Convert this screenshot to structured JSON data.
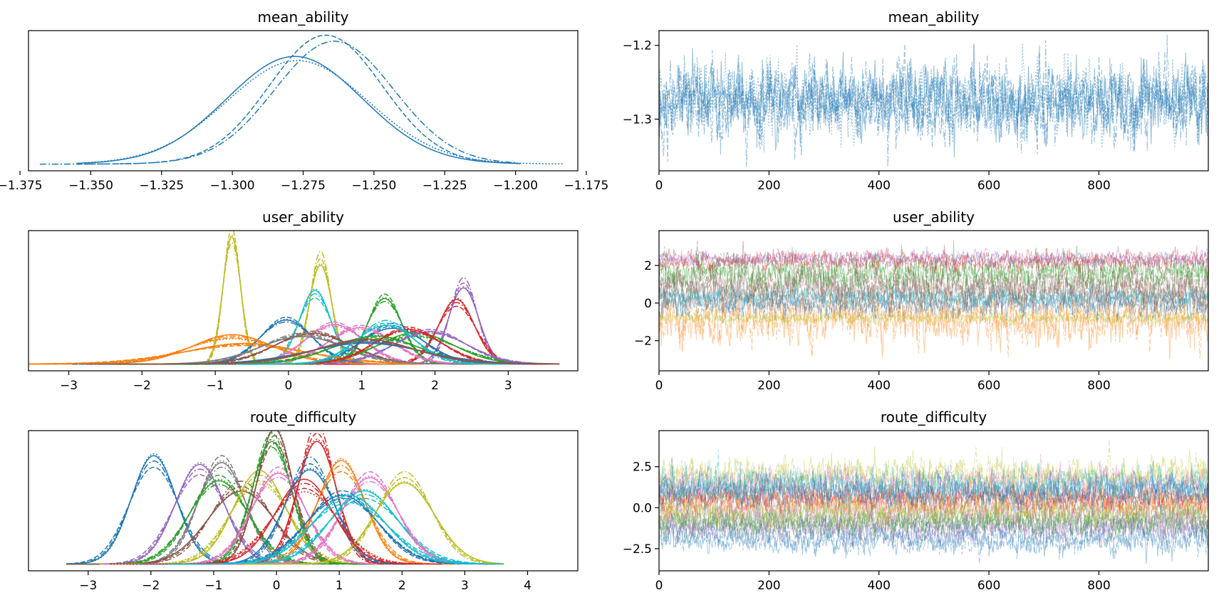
{
  "chart_data": [
    {
      "type": "line",
      "kind": "density",
      "title": "mean_ability",
      "xlabel": "",
      "ylabel": "",
      "xlim": [
        -1.372,
        -1.178
      ],
      "xticks": [
        -1.375,
        -1.35,
        -1.325,
        -1.3,
        -1.275,
        -1.25,
        -1.225,
        -1.2,
        -1.175
      ],
      "xtick_labels": [
        "−1.375",
        "−1.350",
        "−1.325",
        "−1.300",
        "−1.275",
        "−1.250",
        "−1.225",
        "−1.200",
        "−1.175"
      ],
      "y_ticks_visible": false,
      "grid": false,
      "color": "#1f77b4",
      "series": [
        {
          "linestyle": "solid",
          "curve_mean": -1.278,
          "curve_sd": 0.024,
          "range": [
            -1.355,
            -1.198
          ],
          "peak_value": -1.282
        },
        {
          "linestyle": "dashed",
          "curve_mean": -1.267,
          "curve_sd": 0.02,
          "range": [
            -1.355,
            -1.198
          ],
          "peak_value": -1.267
        },
        {
          "linestyle": "dashdot",
          "curve_mean": -1.264,
          "curve_sd": 0.021,
          "range": [
            -1.368,
            -1.2
          ],
          "peak_value": -1.263
        },
        {
          "linestyle": "dotted",
          "curve_mean": -1.277,
          "curve_sd": 0.025,
          "range": [
            -1.352,
            -1.183
          ],
          "peak_value": -1.275
        }
      ]
    },
    {
      "type": "line",
      "kind": "trace",
      "title": "mean_ability",
      "xlabel": "",
      "ylabel": "",
      "xlim": [
        0,
        999
      ],
      "ylim": [
        -1.37,
        -1.18
      ],
      "xticks": [
        0,
        200,
        400,
        600,
        800
      ],
      "xtick_labels": [
        "0",
        "200",
        "400",
        "600",
        "800"
      ],
      "yticks": [
        -1.3,
        -1.2
      ],
      "ytick_labels": [
        "−1.3",
        "−1.2"
      ],
      "grid": false,
      "color": "#1f77b4",
      "draws": 1000,
      "chains": 4,
      "series": [
        {
          "center": -1.275,
          "spread": 0.025,
          "clip": [
            -1.365,
            -1.185
          ]
        }
      ]
    },
    {
      "type": "line",
      "kind": "density",
      "title": "user_ability",
      "xlabel": "",
      "ylabel": "",
      "xlim": [
        -3.55,
        3.95
      ],
      "xticks": [
        -3,
        -2,
        -1,
        0,
        1,
        2,
        3
      ],
      "xtick_labels": [
        "−3",
        "−2",
        "−1",
        "0",
        "1",
        "2",
        "3"
      ],
      "y_ticks_visible": false,
      "grid": false,
      "series": [
        {
          "color": "#bcbd22",
          "curve_mean": -0.78,
          "curve_sd": 0.12
        },
        {
          "color": "#bcbd22",
          "curve_mean": 0.43,
          "curve_sd": 0.15
        },
        {
          "color": "#9467bd",
          "curve_mean": 2.38,
          "curve_sd": 0.19
        },
        {
          "color": "#d62728",
          "curve_mean": 2.28,
          "curve_sd": 0.26
        },
        {
          "color": "#17becf",
          "curve_mean": 0.35,
          "curve_sd": 0.22
        },
        {
          "color": "#2ca02c",
          "curve_mean": 1.3,
          "curve_sd": 0.24
        },
        {
          "color": "#1f77b4",
          "curve_mean": -0.05,
          "curve_sd": 0.35
        },
        {
          "color": "#1f77b4",
          "curve_mean": 1.4,
          "curve_sd": 0.42
        },
        {
          "color": "#ff7f0e",
          "curve_mean": -0.8,
          "curve_sd": 0.6
        },
        {
          "color": "#ff7f0e",
          "curve_mean": -0.65,
          "curve_sd": 0.85
        },
        {
          "color": "#e377c2",
          "curve_mean": 0.95,
          "curve_sd": 0.45
        },
        {
          "color": "#e377c2",
          "curve_mean": 0.6,
          "curve_sd": 0.4
        },
        {
          "color": "#8c564b",
          "curve_mean": 0.3,
          "curve_sd": 0.5
        },
        {
          "color": "#7f7f7f",
          "curve_mean": 0.15,
          "curve_sd": 0.55
        },
        {
          "color": "#2ca02c",
          "curve_mean": 1.7,
          "curve_sd": 0.55
        },
        {
          "color": "#2ca02c",
          "curve_mean": 1.15,
          "curve_sd": 0.6
        },
        {
          "color": "#9467bd",
          "curve_mean": 1.9,
          "curve_sd": 0.5
        },
        {
          "color": "#d62728",
          "curve_mean": 1.6,
          "curve_sd": 0.45
        },
        {
          "color": "#1f77b4",
          "curve_mean": 1.0,
          "curve_sd": 0.75
        },
        {
          "color": "#17becf",
          "curve_mean": 1.3,
          "curve_sd": 0.38
        },
        {
          "color": "#8c564b",
          "curve_mean": 1.0,
          "curve_sd": 0.7
        }
      ]
    },
    {
      "type": "line",
      "kind": "trace",
      "title": "user_ability",
      "xlabel": "",
      "ylabel": "",
      "xlim": [
        0,
        999
      ],
      "ylim": [
        -3.6,
        3.85
      ],
      "xticks": [
        0,
        200,
        400,
        600,
        800
      ],
      "xtick_labels": [
        "0",
        "200",
        "400",
        "600",
        "800"
      ],
      "yticks": [
        -2,
        0,
        2
      ],
      "ytick_labels": [
        "−2",
        "0",
        "2"
      ],
      "grid": false,
      "draws": 1000,
      "series": [
        {
          "color": "#ff7f0e",
          "center": -0.8,
          "spread": 0.7
        },
        {
          "color": "#bcbd22",
          "center": -0.78,
          "spread": 0.15
        },
        {
          "color": "#1f77b4",
          "center": -0.05,
          "spread": 0.35
        },
        {
          "color": "#17becf",
          "center": 0.35,
          "spread": 0.22
        },
        {
          "color": "#7f7f7f",
          "center": 0.6,
          "spread": 0.5
        },
        {
          "color": "#8c564b",
          "center": 1.0,
          "spread": 0.6
        },
        {
          "color": "#2ca02c",
          "center": 1.6,
          "spread": 0.45
        },
        {
          "color": "#d62728",
          "center": 2.25,
          "spread": 0.25
        },
        {
          "color": "#9467bd",
          "center": 2.35,
          "spread": 0.2
        }
      ]
    },
    {
      "type": "line",
      "kind": "density",
      "title": "route_difficulty",
      "xlabel": "",
      "ylabel": "",
      "xlim": [
        -3.95,
        4.8
      ],
      "xticks": [
        -3,
        -2,
        -1,
        0,
        1,
        2,
        3,
        4
      ],
      "xtick_labels": [
        "−3",
        "−2",
        "−1",
        "0",
        "1",
        "2",
        "3",
        "4"
      ],
      "y_ticks_visible": false,
      "grid": false,
      "series": [
        {
          "color": "#1f77b4",
          "curve_mean": -1.98,
          "curve_sd": 0.38
        },
        {
          "color": "#9467bd",
          "curve_mean": -1.25,
          "curve_sd": 0.4
        },
        {
          "color": "#7f7f7f",
          "curve_mean": -0.9,
          "curve_sd": 0.38
        },
        {
          "color": "#2ca02c",
          "curve_mean": -0.95,
          "curve_sd": 0.45
        },
        {
          "color": "#8c564b",
          "curve_mean": -0.6,
          "curve_sd": 0.5
        },
        {
          "color": "#bcbd22",
          "curve_mean": -0.3,
          "curve_sd": 0.45
        },
        {
          "color": "#8c564b",
          "curve_mean": -0.05,
          "curve_sd": 0.3
        },
        {
          "color": "#2ca02c",
          "curve_mean": -0.1,
          "curve_sd": 0.32
        },
        {
          "color": "#e377c2",
          "curve_mean": 0.0,
          "curve_sd": 0.42
        },
        {
          "color": "#d62728",
          "curve_mean": 0.62,
          "curve_sd": 0.3
        },
        {
          "color": "#1f77b4",
          "curve_mean": 0.5,
          "curve_sd": 0.38
        },
        {
          "color": "#ff7f0e",
          "curve_mean": 1.0,
          "curve_sd": 0.4
        },
        {
          "color": "#17becf",
          "curve_mean": 1.35,
          "curve_sd": 0.55
        },
        {
          "color": "#e377c2",
          "curve_mean": 1.45,
          "curve_sd": 0.45
        },
        {
          "color": "#1f77b4",
          "curve_mean": 1.0,
          "curve_sd": 0.55
        },
        {
          "color": "#bcbd22",
          "curve_mean": 2.0,
          "curve_sd": 0.45
        },
        {
          "color": "#d62728",
          "curve_mean": 0.4,
          "curve_sd": 0.5
        },
        {
          "color": "#17becf",
          "curve_mean": 1.1,
          "curve_sd": 0.6
        }
      ]
    },
    {
      "type": "line",
      "kind": "trace",
      "title": "route_difficulty",
      "xlabel": "",
      "ylabel": "",
      "xlim": [
        0,
        999
      ],
      "ylim": [
        -3.85,
        4.7
      ],
      "xticks": [
        0,
        200,
        400,
        600,
        800
      ],
      "xtick_labels": [
        "0",
        "200",
        "400",
        "600",
        "800"
      ],
      "yticks": [
        -2.5,
        0.0,
        2.5
      ],
      "ytick_labels": [
        "−2.5",
        "0.0",
        "2.5"
      ],
      "grid": false,
      "draws": 1000,
      "series": [
        {
          "color": "#9467bd",
          "center": -1.25,
          "spread": 0.45
        },
        {
          "color": "#7f7f7f",
          "center": -0.9,
          "spread": 0.45
        },
        {
          "color": "#2ca02c",
          "center": -0.7,
          "spread": 0.45
        },
        {
          "color": "#e377c2",
          "center": -0.05,
          "spread": 0.45
        },
        {
          "color": "#bcbd22",
          "center": -0.1,
          "spread": 0.45
        },
        {
          "color": "#ff7f0e",
          "center": 0.6,
          "spread": 0.45
        },
        {
          "color": "#d62728",
          "center": 0.6,
          "spread": 0.35
        },
        {
          "color": "#bcbd22",
          "center": 1.9,
          "spread": 0.55
        },
        {
          "color": "#e377c2",
          "center": 1.4,
          "spread": 0.5
        },
        {
          "color": "#17becf",
          "center": 1.3,
          "spread": 0.55
        },
        {
          "color": "#1f77b4",
          "center": 1.0,
          "spread": 0.5
        },
        {
          "color": "#1f77b4",
          "center": -1.95,
          "spread": 0.45
        }
      ]
    }
  ]
}
